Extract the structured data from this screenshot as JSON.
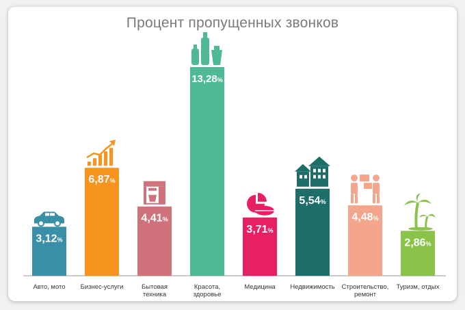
{
  "chart_data": {
    "type": "bar",
    "title": "Процент пропущенных звонков",
    "ylim": [
      0,
      14.5
    ],
    "grid": false,
    "xlabel": "",
    "ylabel": "",
    "unit": "%",
    "categories": [
      [
        "Авто, мото"
      ],
      [
        "Бизнес-услуги"
      ],
      [
        "Бытовая",
        "техника"
      ],
      [
        "Красота,",
        "здоровье"
      ],
      [
        "Медицина"
      ],
      [
        "Недвижимость"
      ],
      [
        "Строительство,",
        "ремонт"
      ],
      [
        "Туризм, отдых"
      ]
    ],
    "values": [
      3.12,
      6.87,
      4.41,
      13.28,
      3.71,
      5.54,
      4.48,
      2.86
    ],
    "value_labels": [
      "3,12",
      "6,87",
      "4,41",
      "13,28",
      "3,71",
      "5,54",
      "4,48",
      "2,86"
    ],
    "icons": [
      "car-icon",
      "growth-chart-icon",
      "coffee-machine-icon",
      "cosmetics-bottles-icon",
      "pills-icon",
      "houses-icon",
      "workers-boxes-icon",
      "palm-trees-icon"
    ],
    "colors": [
      "#3a8fa8",
      "#f7941d",
      "#d0727c",
      "#4fb896",
      "#e91f63",
      "#1d6e68",
      "#f4a68c",
      "#8bc34a"
    ]
  }
}
